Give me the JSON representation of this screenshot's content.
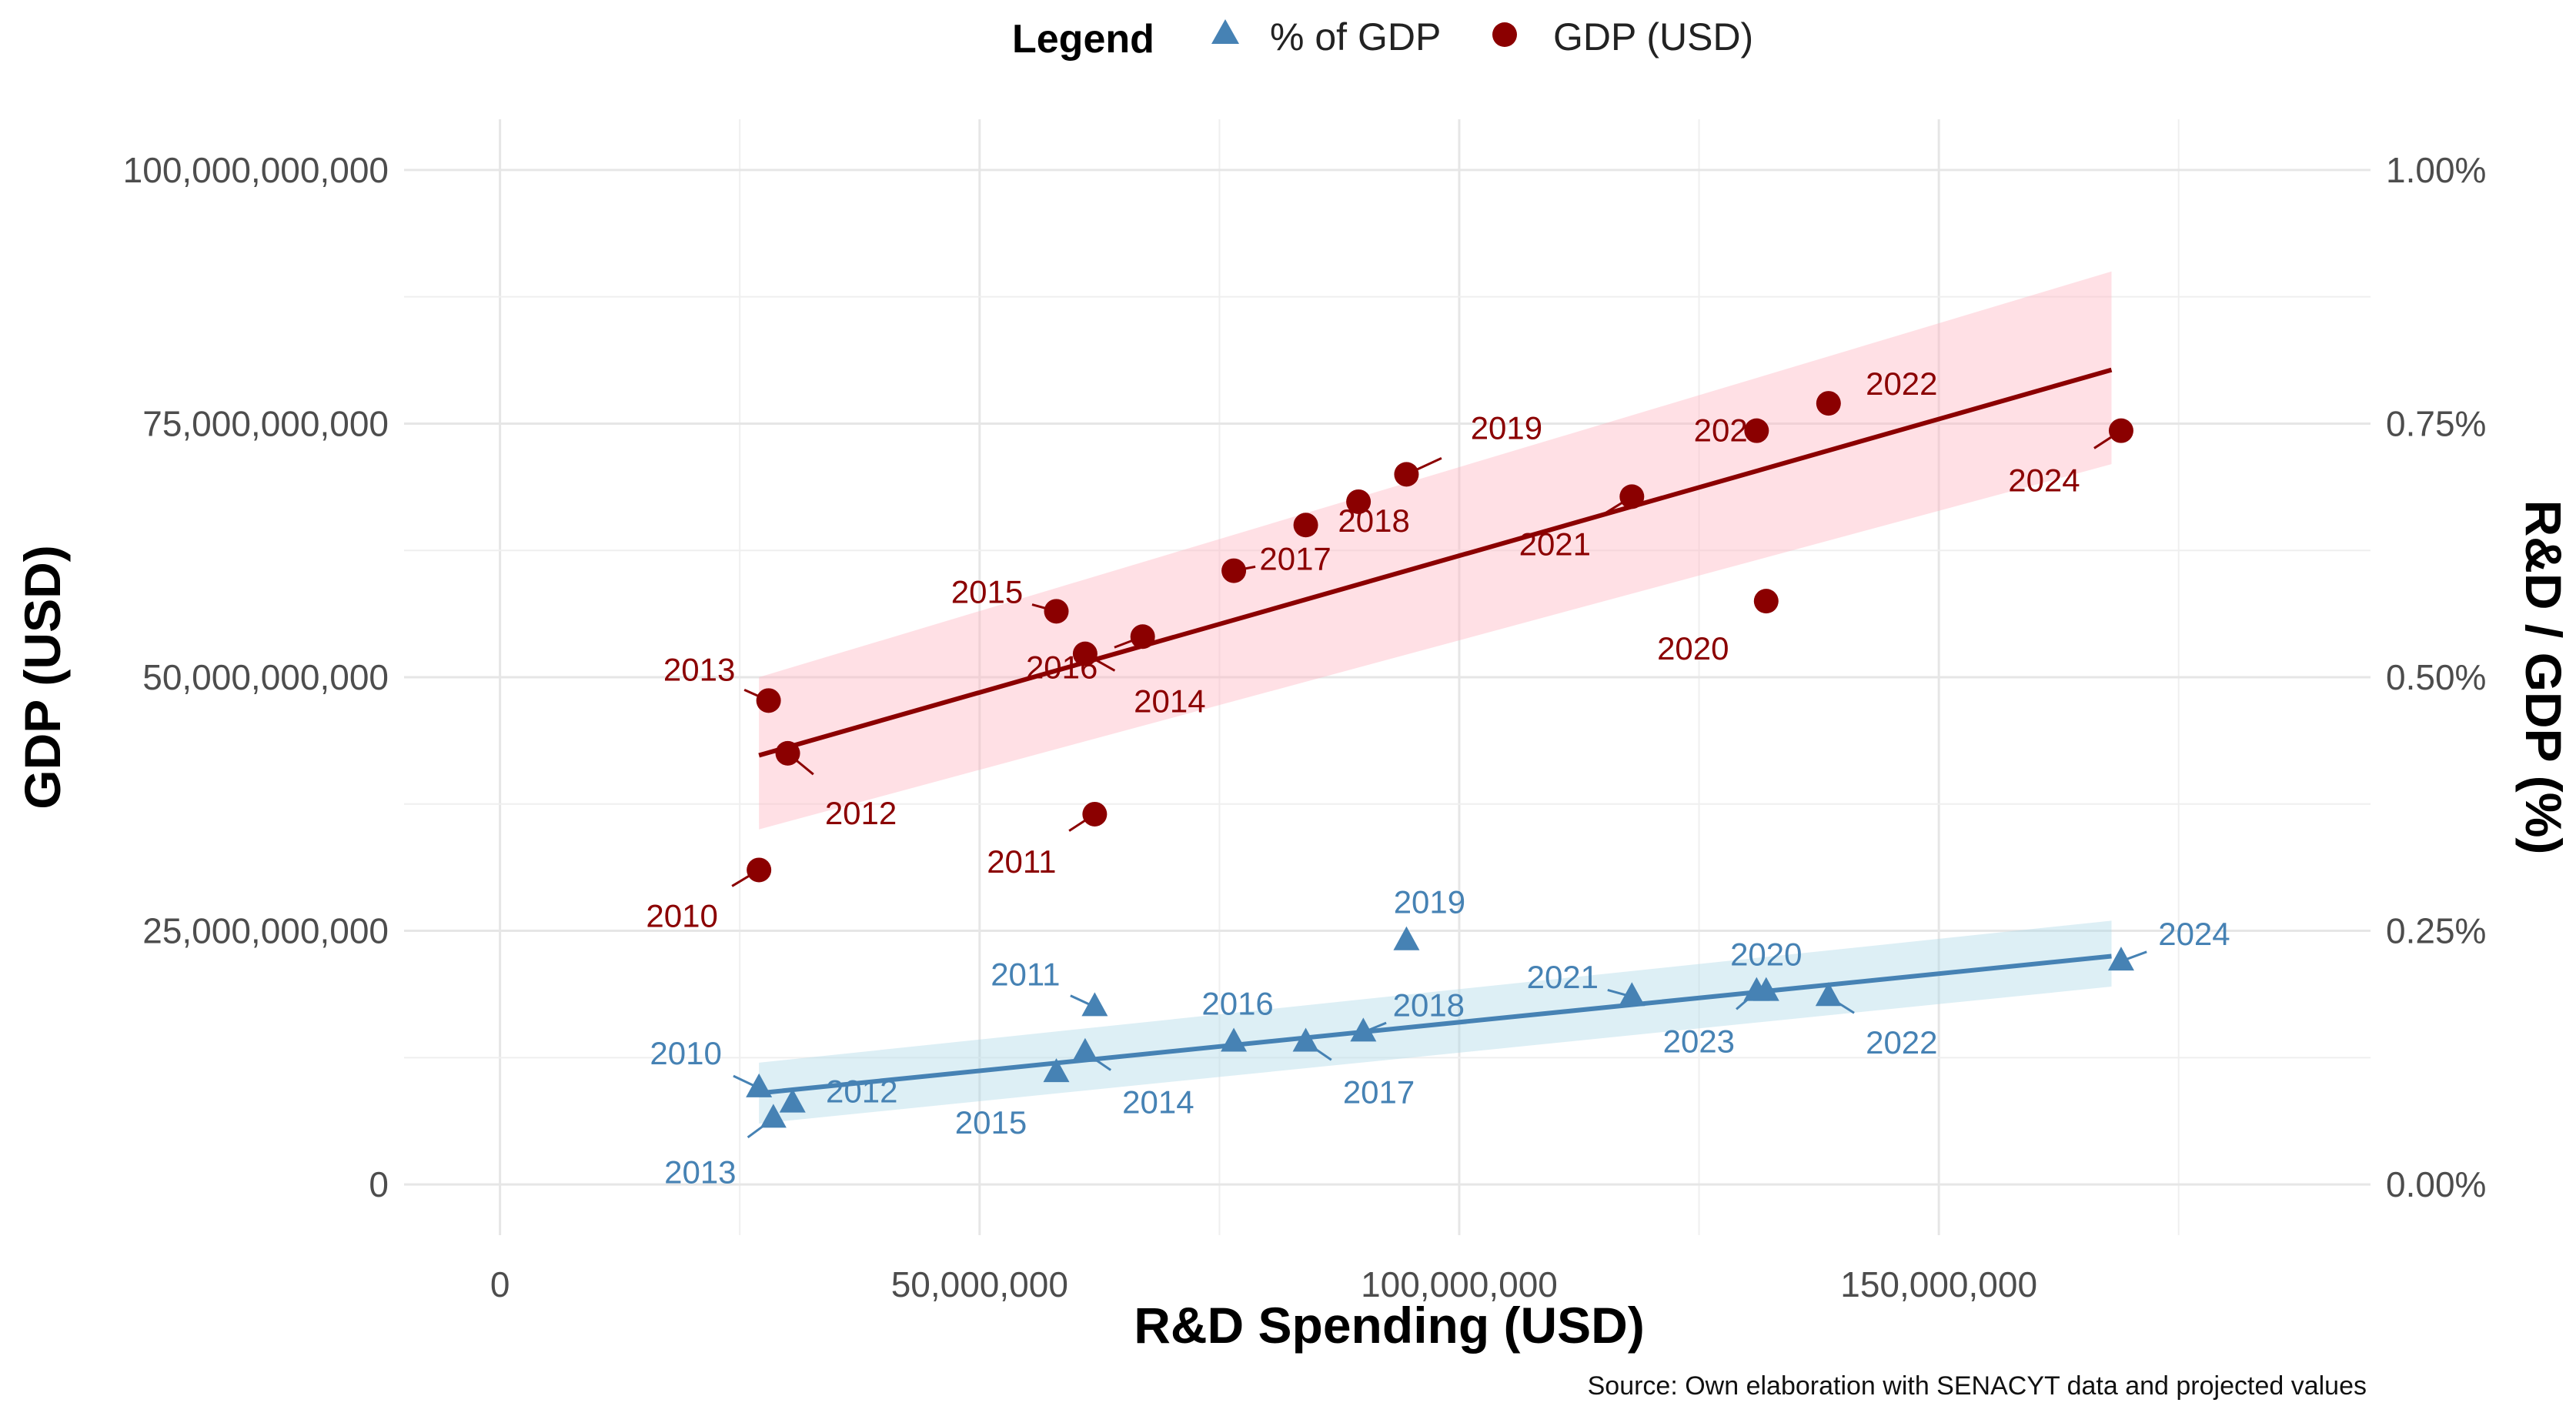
{
  "chart_data": {
    "type": "scatter",
    "title": "",
    "xlabel": "R&D Spending (USD)",
    "ylabel": "GDP (USD)",
    "y2label": "R&D / GDP (%)",
    "xlim": [
      -10000000,
      195000000
    ],
    "ylim": [
      -5000000000,
      105000000000
    ],
    "y2lim": [
      -0.05,
      1.05
    ],
    "grid": true,
    "x_ticks": [
      0,
      50000000,
      100000000,
      150000000
    ],
    "x_tick_labels": [
      "0",
      "50,000,000",
      "100,000,000",
      "150,000,000"
    ],
    "y_ticks": [
      0,
      25000000000,
      50000000000,
      75000000000,
      100000000000
    ],
    "y_tick_labels": [
      "0",
      "25,000,000,000",
      "50,000,000,000",
      "75,000,000,000",
      "100,000,000,000"
    ],
    "y2_ticks": [
      0,
      0.25,
      0.5,
      0.75,
      1.0
    ],
    "y2_tick_labels": [
      "0.00%",
      "0.25%",
      "0.50%",
      "0.75%",
      "1.00%"
    ],
    "legend": {
      "title": "Legend",
      "placement": "top",
      "entries": [
        {
          "label": "% of GDP",
          "shape": "triangle",
          "color": "#4682b4"
        },
        {
          "label": "GDP (USD)",
          "shape": "circle",
          "color": "#8b0000"
        }
      ]
    },
    "caption": "Source: Own elaboration with SENACYT data and projected values",
    "series": [
      {
        "name": "GDP (USD)",
        "axis": "left",
        "color": "#8b0000",
        "band_color": "#ffb6c1",
        "trend": {
          "x": [
            27000000,
            168000000
          ],
          "y": [
            42300000000,
            80300000000
          ],
          "band_lo": [
            35000000000,
            71000000000
          ],
          "band_hi": [
            50000000000,
            90000000000
          ]
        },
        "points": [
          {
            "year": "2010",
            "x": 27000000,
            "y": 31000000000
          },
          {
            "year": "2011",
            "x": 62000000,
            "y": 36500000000
          },
          {
            "year": "2012",
            "x": 30000000,
            "y": 42500000000
          },
          {
            "year": "2013",
            "x": 28000000,
            "y": 47700000000
          },
          {
            "year": "2014",
            "x": 61000000,
            "y": 52300000000
          },
          {
            "year": "2015",
            "x": 58000000,
            "y": 56500000000
          },
          {
            "year": "2016",
            "x": 67000000,
            "y": 54000000000
          },
          {
            "year": "2017",
            "x": 76500000,
            "y": 60500000000
          },
          {
            "year": "2018",
            "x": 89500000,
            "y": 67300000000
          },
          {
            "year": "2019",
            "x": 94500000,
            "y": 70000000000
          },
          {
            "year": "2020",
            "x": 132000000,
            "y": 57500000000
          },
          {
            "year": "2021",
            "x": 118000000,
            "y": 67800000000
          },
          {
            "year": "2022",
            "x": 138500000,
            "y": 77000000000
          },
          {
            "year": "2023",
            "x": 131000000,
            "y": 74300000000
          },
          {
            "year": "2024",
            "x": 169000000,
            "y": 74300000000
          },
          {
            "year": "",
            "x": 84000000,
            "y": 65000000000
          }
        ]
      },
      {
        "name": "% of GDP",
        "axis": "right",
        "color": "#4682b4",
        "band_color": "#add8e6",
        "trend": {
          "x": [
            27000000,
            168000000
          ],
          "y": [
            0.09,
            0.225
          ],
          "band_lo": [
            0.06,
            0.195
          ],
          "band_hi": [
            0.12,
            0.26
          ]
        },
        "points": [
          {
            "year": "2010",
            "x": 27000000,
            "y": 0.095
          },
          {
            "year": "2011",
            "x": 62000000,
            "y": 0.175
          },
          {
            "year": "2012",
            "x": 30500000,
            "y": 0.08
          },
          {
            "year": "2013",
            "x": 28500000,
            "y": 0.065
          },
          {
            "year": "2014",
            "x": 61000000,
            "y": 0.13
          },
          {
            "year": "2015",
            "x": 58000000,
            "y": 0.11
          },
          {
            "year": "2016",
            "x": 76500000,
            "y": 0.14
          },
          {
            "year": "2017",
            "x": 84000000,
            "y": 0.14
          },
          {
            "year": "2018",
            "x": 90000000,
            "y": 0.15
          },
          {
            "year": "2019",
            "x": 94500000,
            "y": 0.24
          },
          {
            "year": "2020",
            "x": 132000000,
            "y": 0.19
          },
          {
            "year": "2021",
            "x": 118000000,
            "y": 0.185
          },
          {
            "year": "2022",
            "x": 138500000,
            "y": 0.185
          },
          {
            "year": "2023",
            "x": 131000000,
            "y": 0.19
          },
          {
            "year": "2024",
            "x": 169000000,
            "y": 0.22
          }
        ]
      }
    ]
  }
}
